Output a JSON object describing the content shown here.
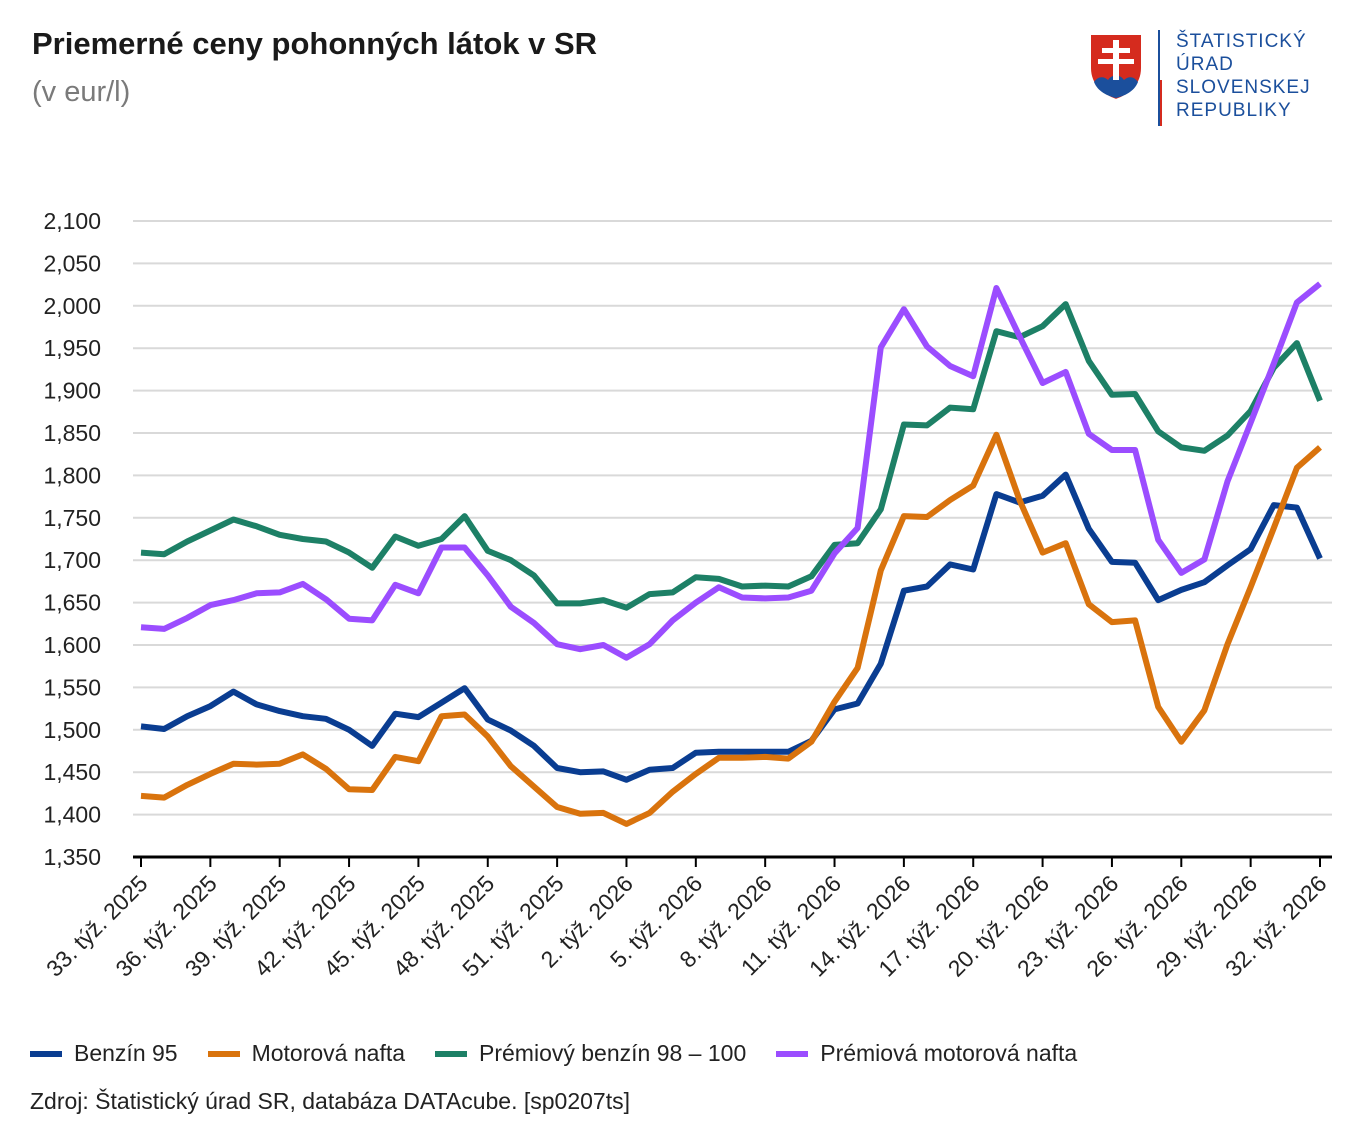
{
  "title": "Priemerné ceny pohonných látok v SR",
  "subtitle": "(v eur/l)",
  "logo": {
    "text_lines": [
      "ŠTATISTICKÝ",
      "ÚRAD",
      "SLOVENSKEJ",
      "REPUBLIKY"
    ],
    "icon": "slovak-coat-of-arms-icon"
  },
  "source": "Zdroj: Štatistický úrad SR, databáza DATAcube. [sp0207ts]",
  "colors": {
    "benzin95": "#0a3d91",
    "nafta": "#d9730d",
    "premium_benzin": "#1d8066",
    "premium_nafta": "#9b4dff",
    "grid": "#d9d9d9",
    "axis": "#000000"
  },
  "chart_data": {
    "type": "line",
    "title": "Priemerné ceny pohonných látok v SR",
    "ylabel": "",
    "xlabel": "",
    "ylim": [
      1.35,
      2.1
    ],
    "yticks": [
      "1,350",
      "1,400",
      "1,450",
      "1,500",
      "1,550",
      "1,600",
      "1,650",
      "1,700",
      "1,750",
      "1,800",
      "1,850",
      "1,900",
      "1,950",
      "2,000",
      "2,050",
      "2,100"
    ],
    "grid": true,
    "legend_position": "bottom",
    "x": [
      "33. týž. 2025",
      "34. týž. 2025",
      "35. týž. 2025",
      "36. týž. 2025",
      "37. týž. 2025",
      "38. týž. 2025",
      "39. týž. 2025",
      "40. týž. 2025",
      "41. týž. 2025",
      "42. týž. 2025",
      "43. týž. 2025",
      "44. týž. 2025",
      "45. týž. 2025",
      "46. týž. 2025",
      "47. týž. 2025",
      "48. týž. 2025",
      "49. týž. 2025",
      "50. týž. 2025",
      "51. týž. 2025",
      "52. týž. 2025",
      "1. týž. 2026",
      "2. týž. 2026",
      "3. týž. 2026",
      "4. týž. 2026",
      "5. týž. 2026",
      "6. týž. 2026",
      "7. týž. 2026",
      "8. týž. 2026",
      "9. týž. 2026",
      "10. týž. 2026",
      "11. týž. 2026",
      "12. týž. 2026",
      "13. týž. 2026",
      "14. týž. 2026",
      "15. týž. 2026",
      "16. týž. 2026",
      "17. týž. 2026",
      "18. týž. 2026",
      "19. týž. 2026",
      "20. týž. 2026",
      "21. týž. 2026",
      "22. týž. 2026",
      "23. týž. 2026",
      "24. týž. 2026",
      "25. týž. 2026",
      "26. týž. 2026",
      "27. týž. 2026",
      "28. týž. 2026",
      "29. týž. 2026",
      "30. týž. 2026",
      "31. týž. 2026",
      "32. týž. 2026"
    ],
    "tick_labels": [
      "33. týž. 2025",
      "36. týž. 2025",
      "39. týž. 2025",
      "42. týž. 2025",
      "45. týž. 2025",
      "48. týž. 2025",
      "51. týž. 2025",
      "2. týž. 2026",
      "5. týž. 2026",
      "8. týž. 2026",
      "11. týž. 2026",
      "14. týž. 2026",
      "17. týž. 2026",
      "20. týž. 2026",
      "23. týž. 2026",
      "26. týž. 2026",
      "29. týž. 2026",
      "32. týž. 2026"
    ],
    "series": [
      {
        "name": "Benzín 95",
        "key": "benzin95",
        "values": [
          1.504,
          1.501,
          1.516,
          1.528,
          1.545,
          1.53,
          1.522,
          1.516,
          1.513,
          1.5,
          1.481,
          1.519,
          1.515,
          1.532,
          1.549,
          1.512,
          1.499,
          1.481,
          1.455,
          1.45,
          1.451,
          1.441,
          1.453,
          1.455,
          1.473,
          1.474,
          1.474,
          1.474,
          1.474,
          1.487,
          1.524,
          1.531,
          1.578,
          1.664,
          1.669,
          1.695,
          1.689,
          1.778,
          1.768,
          1.776,
          1.801,
          1.737,
          1.698,
          1.697,
          1.653,
          1.665,
          1.674,
          1.694,
          1.713,
          1.765,
          1.762,
          1.702
        ]
      },
      {
        "name": "Motorová nafta",
        "key": "nafta",
        "values": [
          1.422,
          1.42,
          1.435,
          1.448,
          1.46,
          1.459,
          1.46,
          1.471,
          1.454,
          1.43,
          1.429,
          1.468,
          1.463,
          1.516,
          1.518,
          1.492,
          1.457,
          1.433,
          1.409,
          1.401,
          1.402,
          1.389,
          1.402,
          1.427,
          1.448,
          1.467,
          1.467,
          1.468,
          1.466,
          1.486,
          1.533,
          1.573,
          1.688,
          1.752,
          1.751,
          1.771,
          1.788,
          1.848,
          1.771,
          1.709,
          1.72,
          1.648,
          1.627,
          1.629,
          1.527,
          1.486,
          1.523,
          1.601,
          1.668,
          1.738,
          1.809,
          1.833
        ]
      },
      {
        "name": "Prémiový benzín 98 – 100",
        "key": "premium_benzin",
        "values": [
          1.709,
          1.707,
          1.722,
          1.735,
          1.748,
          1.74,
          1.73,
          1.725,
          1.722,
          1.709,
          1.691,
          1.728,
          1.717,
          1.725,
          1.752,
          1.711,
          1.7,
          1.682,
          1.649,
          1.649,
          1.653,
          1.644,
          1.66,
          1.662,
          1.68,
          1.678,
          1.669,
          1.67,
          1.669,
          1.681,
          1.718,
          1.72,
          1.76,
          1.86,
          1.859,
          1.88,
          1.878,
          1.97,
          1.963,
          1.976,
          2.002,
          1.935,
          1.895,
          1.896,
          1.852,
          1.833,
          1.829,
          1.847,
          1.876,
          1.927,
          1.956,
          1.888
        ]
      },
      {
        "name": "Prémiová motorová nafta",
        "key": "premium_nafta",
        "values": [
          1.621,
          1.619,
          1.632,
          1.647,
          1.653,
          1.661,
          1.662,
          1.672,
          1.654,
          1.631,
          1.629,
          1.671,
          1.661,
          1.715,
          1.715,
          1.682,
          1.645,
          1.626,
          1.601,
          1.595,
          1.6,
          1.585,
          1.601,
          1.629,
          1.65,
          1.668,
          1.656,
          1.655,
          1.656,
          1.664,
          1.708,
          1.738,
          1.951,
          1.996,
          1.952,
          1.929,
          1.917,
          2.021,
          1.964,
          1.909,
          1.922,
          1.849,
          1.83,
          1.83,
          1.724,
          1.685,
          1.701,
          1.793,
          1.862,
          1.932,
          2.004,
          2.026
        ]
      }
    ]
  }
}
